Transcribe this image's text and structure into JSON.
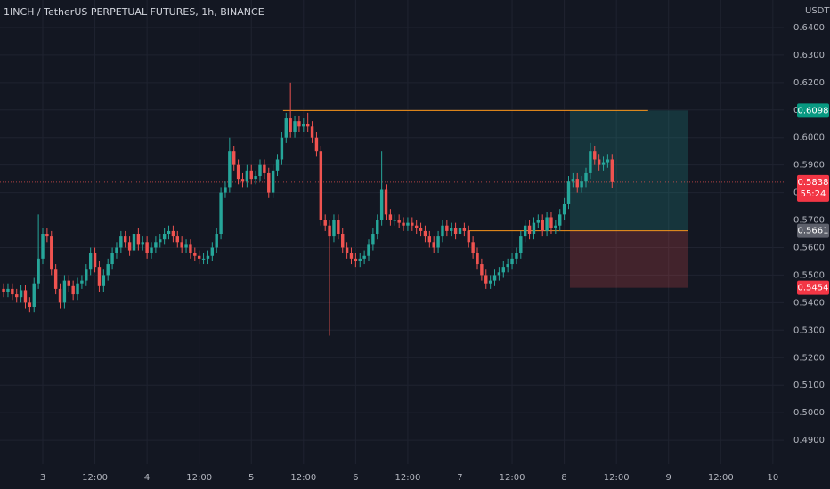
{
  "chart_data": {
    "type": "candlestick",
    "title": "1INCH / TetherUS PERPETUAL FUTURES, 1h, BINANCE",
    "y_unit": "USDT",
    "up_color": "#26a69a",
    "down_color": "#ef5350",
    "grid": true,
    "xlim": [
      -9.836,
      170.49
    ],
    "ylim": [
      0.4813,
      0.65
    ],
    "xticks": [
      {
        "value": 0,
        "label": "3"
      },
      {
        "value": 12,
        "label": "12:00"
      },
      {
        "value": 24,
        "label": "4"
      },
      {
        "value": 36,
        "label": "12:00"
      },
      {
        "value": 48,
        "label": "5"
      },
      {
        "value": 60,
        "label": "12:00"
      },
      {
        "value": 72,
        "label": "6"
      },
      {
        "value": 84,
        "label": "12:00"
      },
      {
        "value": 96,
        "label": "7"
      },
      {
        "value": 108,
        "label": "12:00"
      },
      {
        "value": 120,
        "label": "8"
      },
      {
        "value": 132,
        "label": "12:00"
      },
      {
        "value": 144,
        "label": "9"
      },
      {
        "value": 156,
        "label": "12:00"
      },
      {
        "value": 168,
        "label": "10"
      }
    ],
    "yticks": [
      {
        "value": 0.49,
        "label": "0.4900"
      },
      {
        "value": 0.5,
        "label": "0.5000"
      },
      {
        "value": 0.51,
        "label": "0.5100"
      },
      {
        "value": 0.52,
        "label": "0.5200"
      },
      {
        "value": 0.53,
        "label": "0.5300"
      },
      {
        "value": 0.54,
        "label": "0.5400"
      },
      {
        "value": 0.55,
        "label": "0.5500"
      },
      {
        "value": 0.56,
        "label": "0.5600"
      },
      {
        "value": 0.57,
        "label": "0.5700"
      },
      {
        "value": 0.58,
        "label": "0.5800"
      },
      {
        "value": 0.59,
        "label": "0.5900"
      },
      {
        "value": 0.6,
        "label": "0.6000"
      },
      {
        "value": 0.61,
        "label": "0.6100"
      },
      {
        "value": 0.62,
        "label": "0.6200"
      },
      {
        "value": 0.63,
        "label": "0.6300"
      },
      {
        "value": 0.64,
        "label": "0.6400"
      }
    ],
    "x": [
      -9,
      -8,
      -7,
      -6,
      -5,
      -4,
      -3,
      -2,
      -1,
      0,
      1,
      2,
      3,
      4,
      5,
      6,
      7,
      8,
      9,
      10,
      11,
      12,
      13,
      14,
      15,
      16,
      17,
      18,
      19,
      20,
      21,
      22,
      23,
      24,
      25,
      26,
      27,
      28,
      29,
      30,
      31,
      32,
      33,
      34,
      35,
      36,
      37,
      38,
      39,
      40,
      41,
      42,
      43,
      44,
      45,
      46,
      47,
      48,
      49,
      50,
      51,
      52,
      53,
      54,
      55,
      56,
      57,
      58,
      59,
      60,
      61,
      62,
      63,
      64,
      65,
      66,
      67,
      68,
      69,
      70,
      71,
      72,
      73,
      74,
      75,
      76,
      77,
      78,
      79,
      80,
      81,
      82,
      83,
      84,
      85,
      86,
      87,
      88,
      89,
      90,
      91,
      92,
      93,
      94,
      95,
      96,
      97,
      98,
      99,
      100,
      101,
      102,
      103,
      104,
      105,
      106,
      107,
      108,
      109,
      110,
      111,
      112,
      113,
      114,
      115,
      116,
      117,
      118,
      119,
      120,
      121,
      122,
      123,
      124,
      125,
      126,
      127,
      128,
      129,
      130,
      131
    ],
    "open": [
      0.545,
      0.544,
      0.545,
      0.543,
      0.542,
      0.5445,
      0.54,
      0.5385,
      0.547,
      0.556,
      0.565,
      0.564,
      0.552,
      0.545,
      0.54,
      0.548,
      0.546,
      0.543,
      0.547,
      0.548,
      0.552,
      0.558,
      0.553,
      0.546,
      0.55,
      0.554,
      0.558,
      0.56,
      0.564,
      0.562,
      0.559,
      0.565,
      0.561,
      0.562,
      0.558,
      0.56,
      0.562,
      0.563,
      0.565,
      0.566,
      0.564,
      0.562,
      0.56,
      0.561,
      0.558,
      0.557,
      0.556,
      0.556,
      0.557,
      0.56,
      0.565,
      0.58,
      0.582,
      0.595,
      0.59,
      0.585,
      0.584,
      0.588,
      0.585,
      0.586,
      0.59,
      0.587,
      0.58,
      0.588,
      0.592,
      0.6,
      0.607,
      0.602,
      0.606,
      0.604,
      0.605,
      0.604,
      0.6,
      0.595,
      0.57,
      0.568,
      0.564,
      0.57,
      0.565,
      0.56,
      0.558,
      0.556,
      0.555,
      0.556,
      0.557,
      0.561,
      0.565,
      0.57,
      0.581,
      0.572,
      0.57,
      0.57,
      0.569,
      0.568,
      0.569,
      0.568,
      0.567,
      0.566,
      0.564,
      0.562,
      0.56,
      0.564,
      0.568,
      0.566,
      0.567,
      0.565,
      0.567,
      0.566,
      0.562,
      0.558,
      0.554,
      0.55,
      0.547,
      0.548,
      0.55,
      0.551,
      0.553,
      0.554,
      0.556,
      0.558,
      0.564,
      0.568,
      0.565,
      0.569,
      0.57,
      0.566,
      0.571,
      0.567,
      0.568,
      0.572,
      0.576,
      0.584,
      0.585,
      0.582,
      0.584,
      0.587,
      0.595,
      0.592,
      0.59,
      0.591,
      0.592
    ],
    "high": [
      0.547,
      0.547,
      0.547,
      0.545,
      0.5465,
      0.5465,
      0.542,
      0.549,
      0.572,
      0.567,
      0.567,
      0.566,
      0.554,
      0.547,
      0.55,
      0.55,
      0.548,
      0.549,
      0.55,
      0.554,
      0.56,
      0.56,
      0.555,
      0.552,
      0.556,
      0.56,
      0.562,
      0.566,
      0.566,
      0.564,
      0.567,
      0.567,
      0.564,
      0.564,
      0.562,
      0.564,
      0.565,
      0.567,
      0.568,
      0.568,
      0.566,
      0.564,
      0.563,
      0.563,
      0.56,
      0.559,
      0.558,
      0.559,
      0.562,
      0.567,
      0.582,
      0.584,
      0.6,
      0.597,
      0.592,
      0.587,
      0.59,
      0.59,
      0.588,
      0.592,
      0.592,
      0.589,
      0.59,
      0.594,
      0.602,
      0.609,
      0.62,
      0.608,
      0.608,
      0.607,
      0.609,
      0.606,
      0.602,
      0.597,
      0.572,
      0.57,
      0.572,
      0.572,
      0.567,
      0.562,
      0.56,
      0.558,
      0.558,
      0.559,
      0.563,
      0.567,
      0.572,
      0.595,
      0.583,
      0.574,
      0.572,
      0.572,
      0.571,
      0.571,
      0.571,
      0.57,
      0.569,
      0.568,
      0.566,
      0.564,
      0.566,
      0.57,
      0.57,
      0.569,
      0.569,
      0.569,
      0.569,
      0.568,
      0.564,
      0.56,
      0.556,
      0.552,
      0.55,
      0.552,
      0.553,
      0.555,
      0.556,
      0.558,
      0.56,
      0.566,
      0.57,
      0.57,
      0.571,
      0.572,
      0.572,
      0.573,
      0.573,
      0.57,
      0.574,
      0.578,
      0.586,
      0.587,
      0.587,
      0.586,
      0.589,
      0.598,
      0.597,
      0.594,
      0.593,
      0.594,
      0.594
    ],
    "low": [
      0.542,
      0.542,
      0.541,
      0.54,
      0.54,
      0.538,
      0.5365,
      0.5365,
      0.545,
      0.554,
      0.562,
      0.55,
      0.543,
      0.538,
      0.538,
      0.544,
      0.541,
      0.541,
      0.545,
      0.546,
      0.55,
      0.551,
      0.544,
      0.544,
      0.548,
      0.552,
      0.556,
      0.558,
      0.56,
      0.557,
      0.557,
      0.559,
      0.559,
      0.556,
      0.556,
      0.558,
      0.56,
      0.561,
      0.563,
      0.562,
      0.56,
      0.558,
      0.558,
      0.556,
      0.555,
      0.554,
      0.554,
      0.554,
      0.555,
      0.558,
      0.563,
      0.578,
      0.58,
      0.588,
      0.583,
      0.582,
      0.582,
      0.583,
      0.583,
      0.584,
      0.585,
      0.578,
      0.578,
      0.586,
      0.59,
      0.598,
      0.6,
      0.6,
      0.602,
      0.602,
      0.602,
      0.598,
      0.593,
      0.568,
      0.566,
      0.528,
      0.562,
      0.563,
      0.558,
      0.556,
      0.554,
      0.553,
      0.553,
      0.554,
      0.555,
      0.559,
      0.563,
      0.568,
      0.57,
      0.568,
      0.568,
      0.567,
      0.566,
      0.566,
      0.566,
      0.565,
      0.564,
      0.562,
      0.56,
      0.558,
      0.558,
      0.562,
      0.564,
      0.564,
      0.563,
      0.563,
      0.564,
      0.56,
      0.556,
      0.552,
      0.548,
      0.545,
      0.545,
      0.546,
      0.548,
      0.549,
      0.551,
      0.552,
      0.554,
      0.556,
      0.562,
      0.563,
      0.563,
      0.567,
      0.564,
      0.564,
      0.565,
      0.565,
      0.566,
      0.57,
      0.574,
      0.582,
      0.58,
      0.58,
      0.582,
      0.585,
      0.59,
      0.588,
      0.588,
      0.589,
      0.5818
    ],
    "close": [
      0.544,
      0.545,
      0.543,
      0.542,
      0.5445,
      0.54,
      0.5385,
      0.547,
      0.556,
      0.565,
      0.564,
      0.552,
      0.545,
      0.54,
      0.548,
      0.546,
      0.543,
      0.547,
      0.548,
      0.552,
      0.558,
      0.553,
      0.546,
      0.55,
      0.554,
      0.558,
      0.56,
      0.564,
      0.562,
      0.559,
      0.565,
      0.561,
      0.562,
      0.558,
      0.56,
      0.562,
      0.563,
      0.565,
      0.566,
      0.564,
      0.562,
      0.56,
      0.561,
      0.558,
      0.557,
      0.556,
      0.556,
      0.557,
      0.56,
      0.565,
      0.58,
      0.582,
      0.595,
      0.59,
      0.585,
      0.584,
      0.588,
      0.585,
      0.586,
      0.59,
      0.587,
      0.58,
      0.588,
      0.592,
      0.6,
      0.607,
      0.602,
      0.606,
      0.604,
      0.605,
      0.604,
      0.6,
      0.595,
      0.57,
      0.568,
      0.564,
      0.57,
      0.565,
      0.56,
      0.558,
      0.556,
      0.555,
      0.556,
      0.557,
      0.561,
      0.565,
      0.57,
      0.581,
      0.572,
      0.57,
      0.57,
      0.569,
      0.568,
      0.569,
      0.568,
      0.567,
      0.566,
      0.564,
      0.562,
      0.56,
      0.564,
      0.568,
      0.566,
      0.567,
      0.565,
      0.567,
      0.566,
      0.562,
      0.558,
      0.554,
      0.55,
      0.547,
      0.548,
      0.55,
      0.551,
      0.553,
      0.554,
      0.556,
      0.558,
      0.564,
      0.568,
      0.565,
      0.569,
      0.57,
      0.566,
      0.571,
      0.567,
      0.568,
      0.572,
      0.576,
      0.584,
      0.585,
      0.582,
      0.584,
      0.587,
      0.595,
      0.592,
      0.59,
      0.591,
      0.592,
      0.5838
    ],
    "position": {
      "target": {
        "value": 0.6098,
        "label": "0.6098"
      },
      "entry": {
        "value": 0.5661,
        "label": "0.5661"
      },
      "stop": {
        "value": 0.5454,
        "label": "0.5454"
      },
      "x": [
        121.3,
        148.4
      ]
    },
    "lines": [
      {
        "value": 0.6098,
        "x": [
          55.3,
          139.3
        ]
      },
      {
        "value": 0.5661,
        "x": [
          97.7,
          148.4
        ]
      }
    ],
    "last_price": {
      "value": 0.5838,
      "label": "0.5838"
    },
    "countdown": "55:24"
  }
}
